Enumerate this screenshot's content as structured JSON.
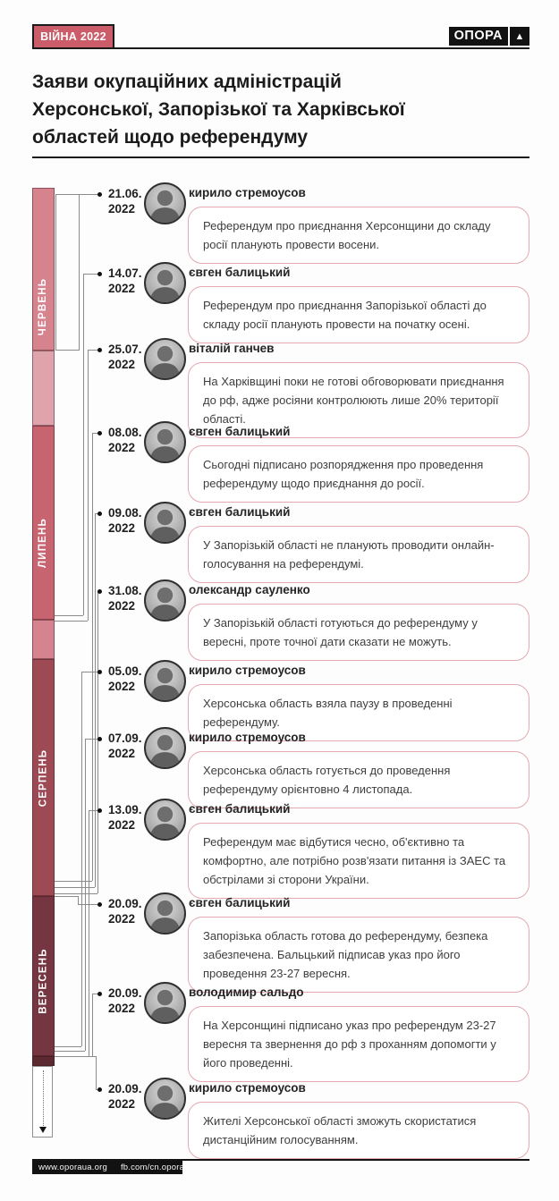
{
  "header": {
    "badge": "ВІЙНА 2022",
    "logo": {
      "name": "ОПОРА",
      "arrow": "▲"
    },
    "title_lines": [
      "Заяви окупаційних адміністрацій",
      "Херсонської, Запорізької та Харківської",
      "областей щодо референдуму"
    ]
  },
  "colors": {
    "badge_bg": "#ca5d69",
    "quote_border": "#e4a9b1",
    "line_gray": "#8b8b8b",
    "june_main": "#d6838e",
    "june_light": "#dfa3ab",
    "july_main": "#c86370",
    "july_light": "#d5848f",
    "august_main": "#9d4a55",
    "september_main": "#753641",
    "september_cap": "#5c2931"
  },
  "months": [
    {
      "label": "ЧЕРВЕНЬ"
    },
    {
      "label": "ЛИПЕНЬ"
    },
    {
      "label": "СЕРПЕНЬ"
    },
    {
      "label": "ВЕРЕСЕНЬ"
    }
  ],
  "entries": [
    {
      "date_top": "21.06.",
      "date_bottom": "2022",
      "name": "кирило стремоусов",
      "quote": "Референдум про приєднання Херсонщини до складу росії планують провести восени."
    },
    {
      "date_top": "14.07.",
      "date_bottom": "2022",
      "name": "євген балицький",
      "quote": "Референдум про приєднання Запорізької області до складу росії планують провести на початку осені."
    },
    {
      "date_top": "25.07.",
      "date_bottom": "2022",
      "name": "віталій ганчев",
      "quote": "На Харківщині поки не готові обговорювати приєднання до рф, адже росіяни контролюють лише 20% території області."
    },
    {
      "date_top": "08.08.",
      "date_bottom": "2022",
      "name": "євген балицький",
      "quote": "Сьогодні підписано розпорядження про проведення референдуму щодо приєднання до росії."
    },
    {
      "date_top": "09.08.",
      "date_bottom": "2022",
      "name": "євген балицький",
      "quote": "У Запорізькій області не планують проводити онлайн-голосування на референдумі."
    },
    {
      "date_top": "31.08.",
      "date_bottom": "2022",
      "name": "олександр сауленко",
      "quote": "У Запорізькій області готуються до референдуму у вересні, проте точної дати сказати не можуть."
    },
    {
      "date_top": "05.09.",
      "date_bottom": "2022",
      "name": "кирило стремоусов",
      "quote": "Херсонська область взяла паузу в проведенні референдуму."
    },
    {
      "date_top": "07.09.",
      "date_bottom": "2022",
      "name": "кирило стремоусов",
      "quote": "Херсонська область готується до проведення референдуму орієнтовно 4 листопада."
    },
    {
      "date_top": "13.09.",
      "date_bottom": "2022",
      "name": "євген балицький",
      "quote": "Референдум має відбутися чесно, об'єктивно та комфортно, але потрібно розв'язати питання із ЗАЕС та обстрілами зі сторони України."
    },
    {
      "date_top": "20.09.",
      "date_bottom": "2022",
      "name": "євген балицький",
      "quote": "Запорізька область готова до референдуму, безпека забезпечена. Бальцький підписав указ про його проведення 23-27 вересня."
    },
    {
      "date_top": "20.09.",
      "date_bottom": "2022",
      "name": "володимир сальдо",
      "quote": "На Херсонщині підписано указ про референдум 23-27 вересня та звернення до рф з проханням допомогти у його проведенні."
    },
    {
      "date_top": "20.09.",
      "date_bottom": "2022",
      "name": "кирило стремоусов",
      "quote": "Жителі Херсонської області зможуть скористатися дистанційним голосуванням."
    }
  ],
  "footer": {
    "website": "www.oporaua.org",
    "facebook": "fb.com/cn.opora"
  }
}
